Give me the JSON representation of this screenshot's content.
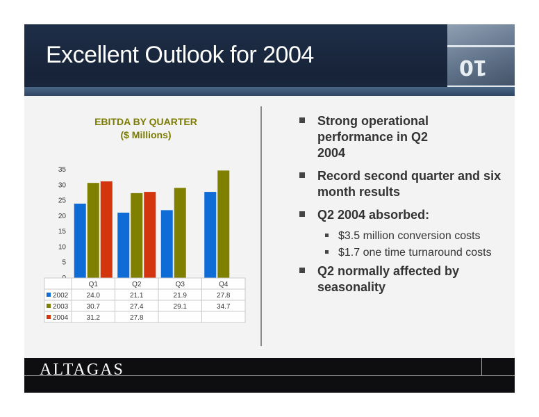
{
  "slide": {
    "title": "Excellent Outlook for 2004",
    "footer_logo": "ALTAGAS"
  },
  "colors": {
    "header_bg": "#1e2f48",
    "series_2002": "#0f6bd6",
    "series_2003": "#808000",
    "series_2004": "#d3350e",
    "chart_title": "#7b7b00"
  },
  "chart_data": {
    "type": "bar",
    "title": "EBITDA BY QUARTER",
    "subtitle": "($ Millions)",
    "categories": [
      "Q1",
      "Q2",
      "Q3",
      "Q4"
    ],
    "series": [
      {
        "name": "2002",
        "values": [
          24.0,
          21.1,
          21.9,
          27.8
        ],
        "labels": [
          "24.0",
          "21.1",
          "21.9",
          "27.8"
        ]
      },
      {
        "name": "2003",
        "values": [
          30.7,
          27.4,
          29.1,
          34.7
        ],
        "labels": [
          "30.7",
          "27.4",
          "29.1",
          "34.7"
        ]
      },
      {
        "name": "2004",
        "values": [
          31.2,
          27.8,
          null,
          null
        ],
        "labels": [
          "31.2",
          "27.8",
          "",
          ""
        ]
      }
    ],
    "ylim": [
      0,
      35
    ],
    "yticks": [
      0,
      5,
      10,
      15,
      20,
      25,
      30,
      35
    ],
    "legend": "data-table",
    "grid": false
  },
  "bullets": [
    {
      "text": "Strong operational performance in Q2 2004",
      "sub": []
    },
    {
      "text": "Record second quarter and six month results",
      "sub": []
    },
    {
      "text": "Q2 2004 absorbed:",
      "sub": [
        "$3.5 million conversion costs",
        "$1.7 one time turnaround costs"
      ]
    },
    {
      "text": "Q2 normally affected by seasonality",
      "sub": []
    }
  ]
}
